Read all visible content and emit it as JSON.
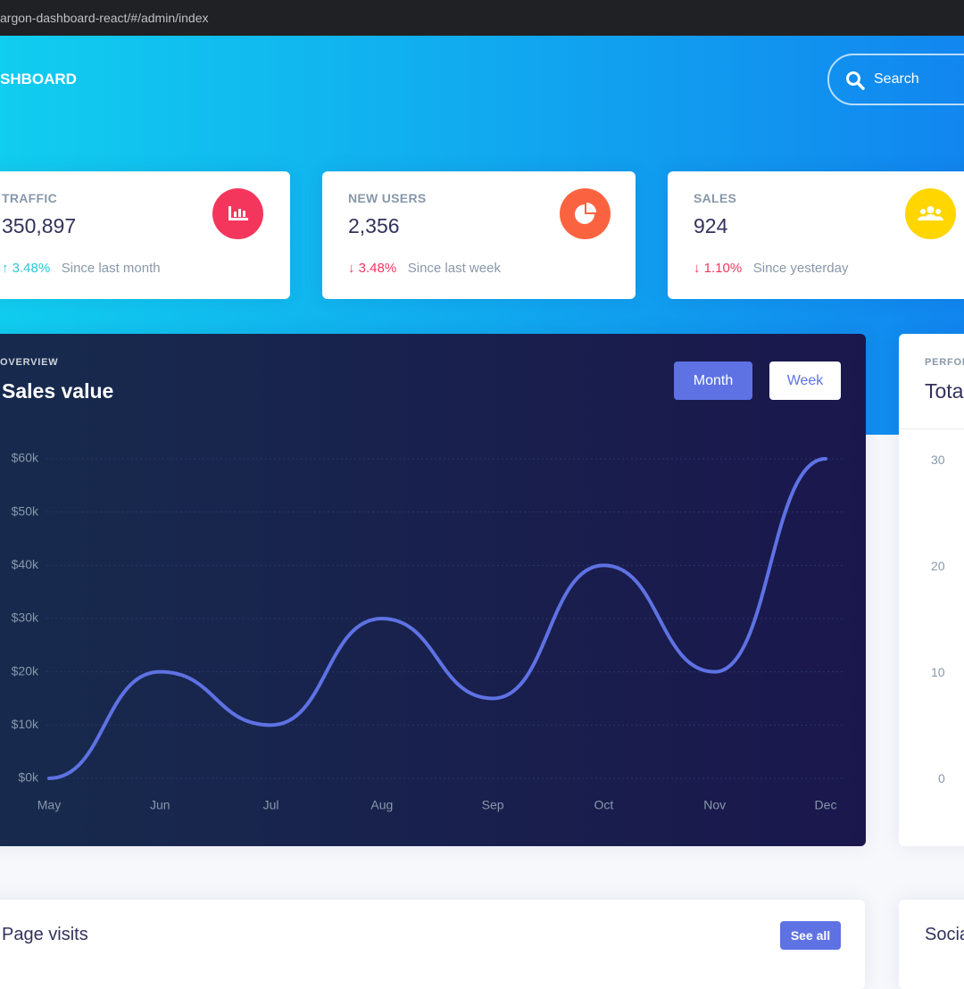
{
  "browser": {
    "url": "argon-dashboard-react/#/admin/index"
  },
  "header": {
    "title": "SHBOARD",
    "search_placeholder": "Search"
  },
  "stats": [
    {
      "title": "TRAFFIC",
      "value": "350,897",
      "change": "3.48%",
      "period": "Since last month"
    },
    {
      "title": "NEW USERS",
      "value": "2,356",
      "change": "3.48%",
      "period": "Since last week"
    },
    {
      "title": "SALES",
      "value": "924",
      "change": "1.10%",
      "period": "Since yesterday"
    }
  ],
  "sales_card": {
    "overline": "OVERVIEW",
    "title": "Sales value",
    "buttons": [
      "Month",
      "Week"
    ]
  },
  "chart_data": {
    "type": "line",
    "categories": [
      "May",
      "Jun",
      "Jul",
      "Aug",
      "Sep",
      "Oct",
      "Nov",
      "Dec"
    ],
    "values": [
      0,
      20,
      10,
      30,
      15,
      40,
      20,
      60
    ],
    "color": "#5e72e4",
    "ylim": [
      0,
      60
    ],
    "yticks": [
      {
        "value": 0,
        "label": "$0k"
      },
      {
        "value": 10,
        "label": "$10k"
      },
      {
        "value": 20,
        "label": "$20k"
      },
      {
        "value": 30,
        "label": "$30k"
      },
      {
        "value": 40,
        "label": "$40k"
      },
      {
        "value": 50,
        "label": "$50k"
      },
      {
        "value": 60,
        "label": "$60k"
      }
    ],
    "grid": true
  },
  "performance_card": {
    "overline": "PERFOR",
    "title": "Tota",
    "yticks": [
      "30",
      "20",
      "10",
      "0"
    ]
  },
  "page_visits": {
    "title": "Page visits",
    "button": "See all"
  },
  "social_card": {
    "title": "Socia"
  }
}
